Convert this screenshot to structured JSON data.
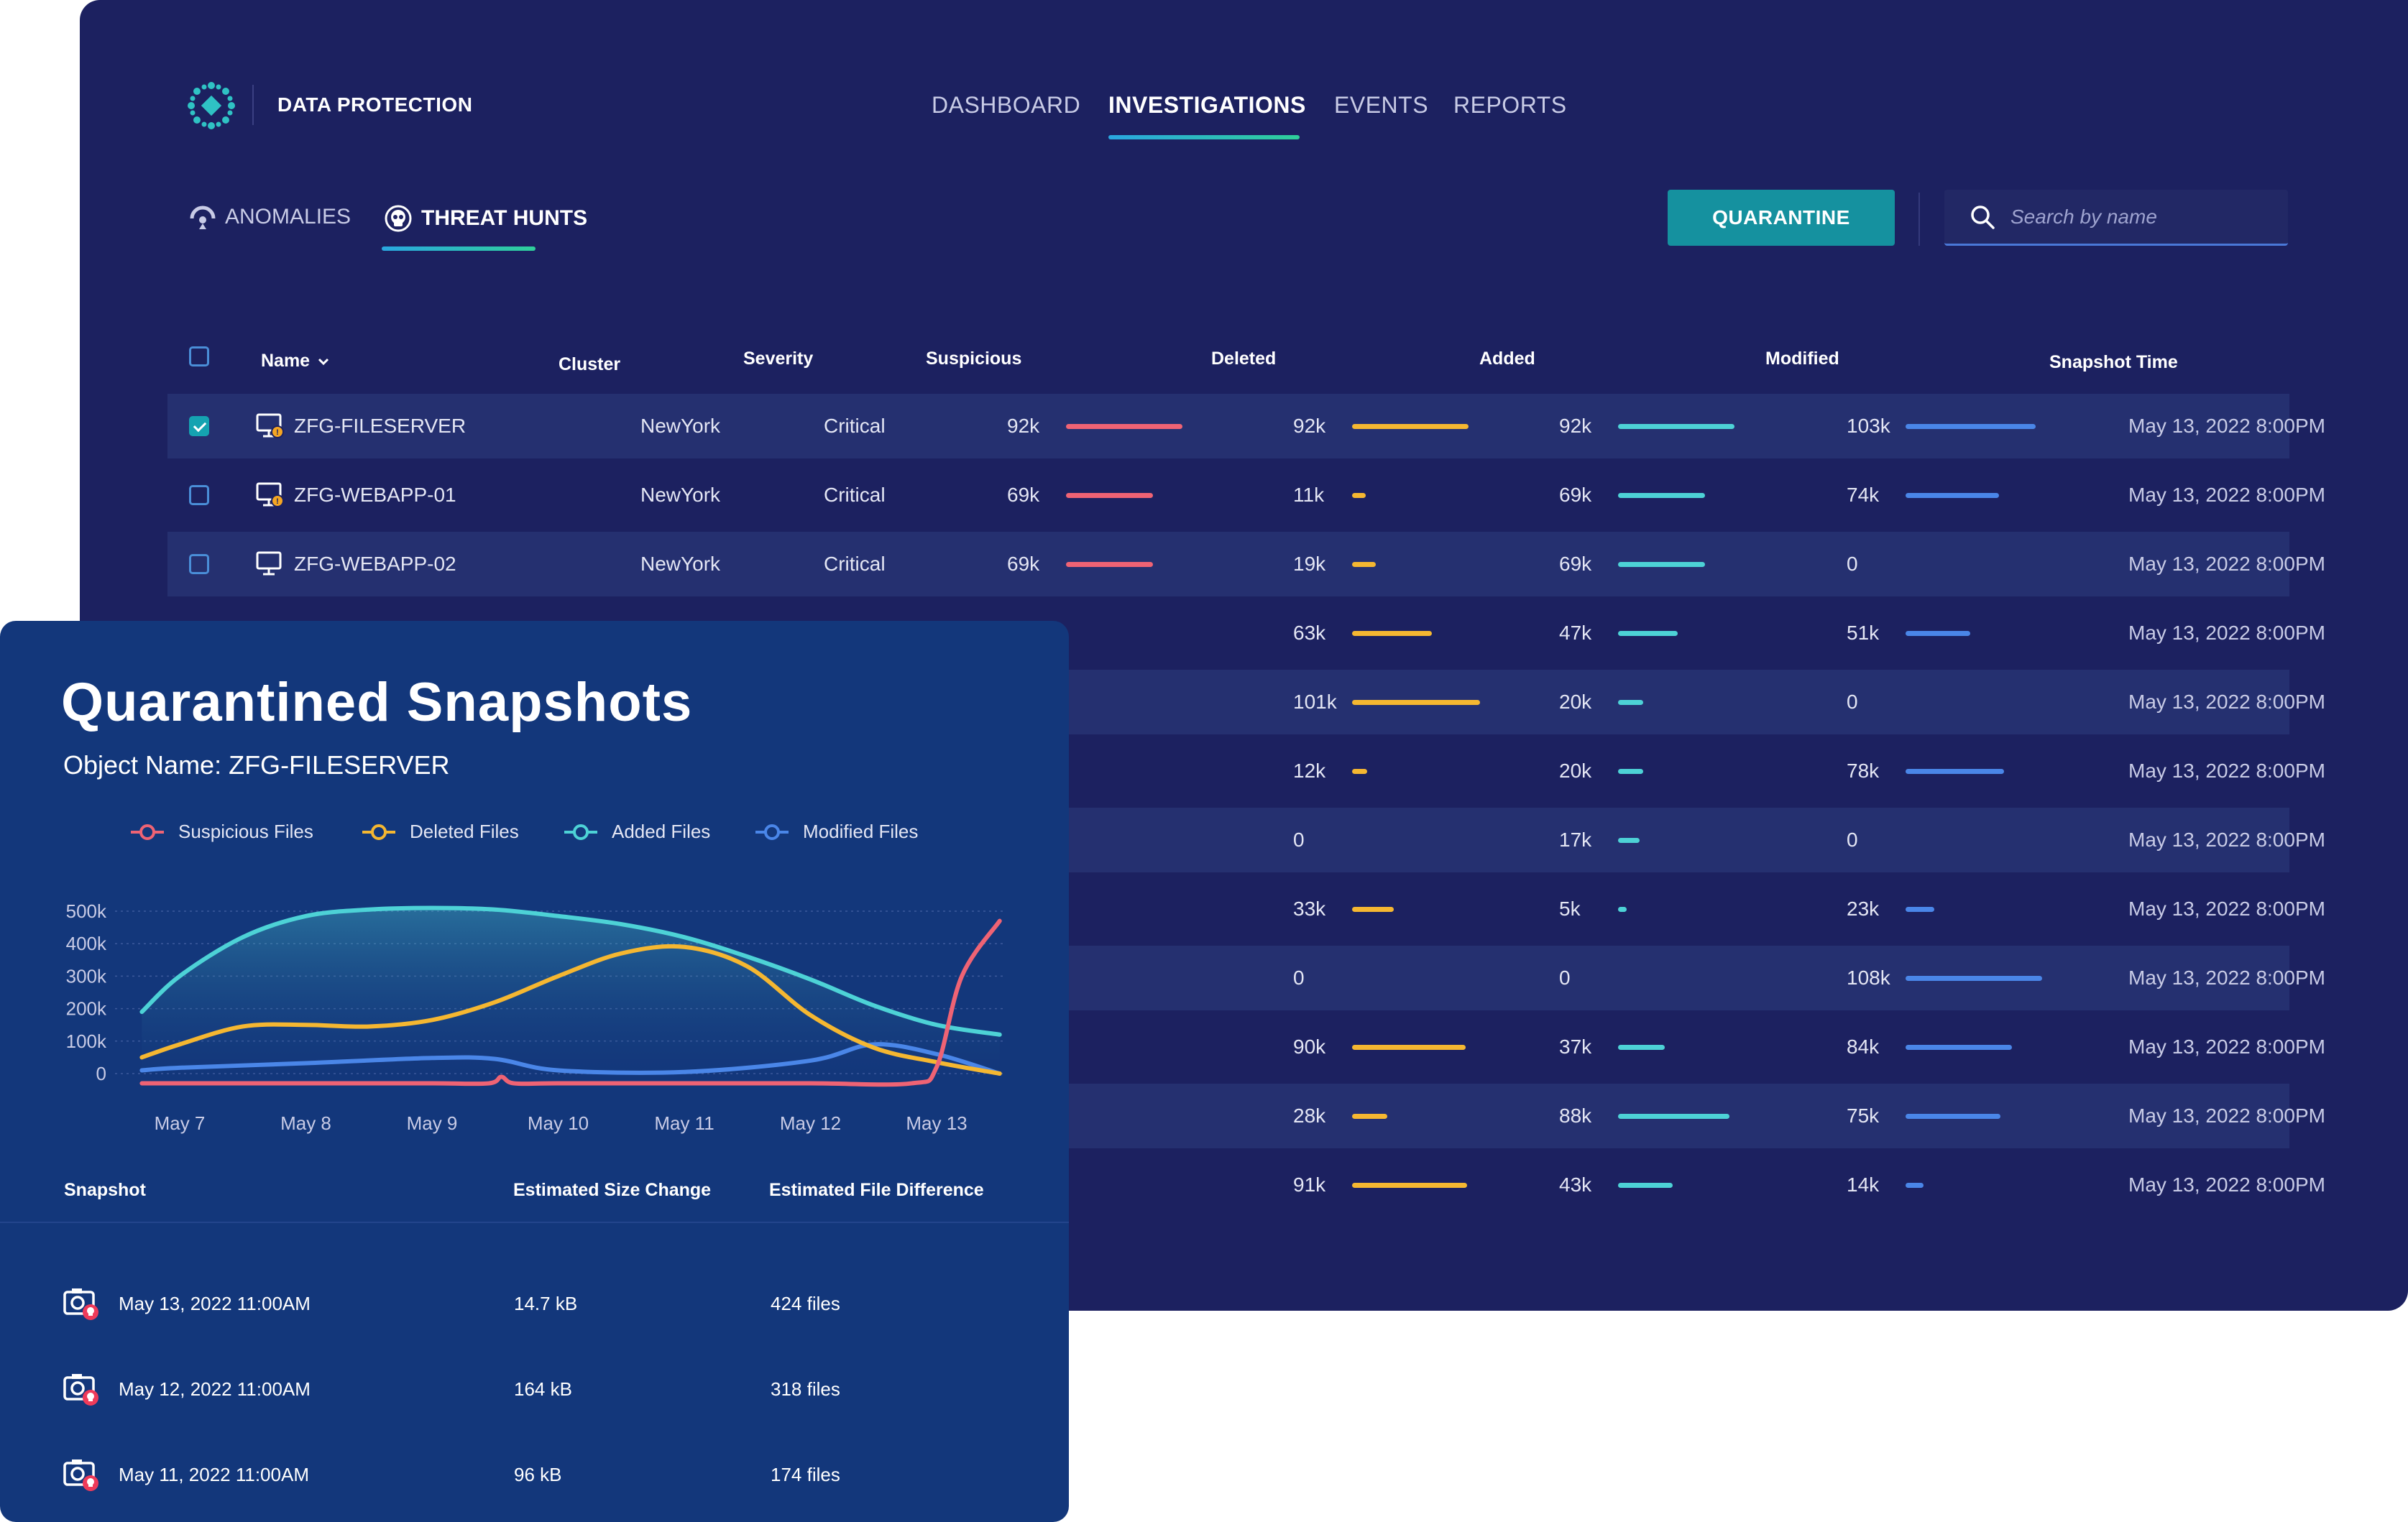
{
  "app": {
    "brand": "DATA PROTECTION"
  },
  "nav": [
    {
      "label": "DASHBOARD",
      "active": false
    },
    {
      "label": "INVESTIGATIONS",
      "active": true
    },
    {
      "label": "EVENTS",
      "active": false
    },
    {
      "label": "REPORTS",
      "active": false
    }
  ],
  "subtabs": [
    {
      "label": "ANOMALIES",
      "icon": "anomaly-icon",
      "active": false
    },
    {
      "label": "THREAT HUNTS",
      "icon": "skull-icon",
      "active": true
    }
  ],
  "toolbar": {
    "quarantine_label": "QUARANTINE",
    "search_placeholder": "Search by name"
  },
  "colors": {
    "suspicious": "#ef6374",
    "deleted": "#f5b731",
    "added": "#4dd2d6",
    "modified": "#4a86e8",
    "accent": "#15919f"
  },
  "table": {
    "headers": {
      "name": "Name",
      "cluster": "Cluster",
      "severity": "Severity",
      "suspicious": "Suspicious",
      "deleted": "Deleted",
      "added": "Added",
      "modified": "Modified",
      "snapshot_time": "Snapshot Time"
    },
    "rows": [
      {
        "checked": true,
        "name": "ZFG-FILESERVER",
        "warn": true,
        "cluster": "NewYork",
        "severity": "Critical",
        "suspicious": "92k",
        "deleted": "92k",
        "added": "92k",
        "modified": "103k",
        "time": "May 13, 2022 8:00PM"
      },
      {
        "checked": false,
        "name": "ZFG-WEBAPP-01",
        "warn": true,
        "cluster": "NewYork",
        "severity": "Critical",
        "suspicious": "69k",
        "deleted": "11k",
        "added": "69k",
        "modified": "74k",
        "time": "May 13, 2022 8:00PM"
      },
      {
        "checked": false,
        "name": "ZFG-WEBAPP-02",
        "warn": false,
        "cluster": "NewYork",
        "severity": "Critical",
        "suspicious": "69k",
        "deleted": "19k",
        "added": "69k",
        "modified": "0",
        "time": "May 13, 2022 8:00PM"
      },
      {
        "deleted": "63k",
        "added": "47k",
        "modified": "51k",
        "time": "May 13, 2022 8:00PM"
      },
      {
        "deleted": "101k",
        "added": "20k",
        "modified": "0",
        "time": "May 13, 2022 8:00PM"
      },
      {
        "deleted": "12k",
        "added": "20k",
        "modified": "78k",
        "time": "May 13, 2022 8:00PM"
      },
      {
        "deleted": "0",
        "added": "17k",
        "modified": "0",
        "time": "May 13, 2022 8:00PM"
      },
      {
        "deleted": "33k",
        "added": "5k",
        "modified": "23k",
        "time": "May 13, 2022 8:00PM"
      },
      {
        "deleted": "0",
        "added": "0",
        "modified": "108k",
        "time": "May 13, 2022 8:00PM"
      },
      {
        "deleted": "90k",
        "added": "37k",
        "modified": "84k",
        "time": "May 13, 2022 8:00PM"
      },
      {
        "deleted": "28k",
        "added": "88k",
        "modified": "75k",
        "time": "May 13, 2022 8:00PM"
      },
      {
        "deleted": "91k",
        "added": "43k",
        "modified": "14k",
        "time": "May 13, 2022 8:00PM"
      }
    ]
  },
  "panel": {
    "title": "Quarantined Snapshots",
    "subtitle": "Object Name: ZFG-FILESERVER",
    "headers": {
      "snapshot": "Snapshot",
      "size": "Estimated Size Change",
      "diff": "Estimated File Difference"
    },
    "snapshots": [
      {
        "date": "May 13, 2022 11:00AM",
        "size": "14.7 kB",
        "diff": "424 files"
      },
      {
        "date": "May 12, 2022 11:00AM",
        "size": "164 kB",
        "diff": "318 files"
      },
      {
        "date": "May 11, 2022 11:00AM",
        "size": "96 kB",
        "diff": "174 files"
      }
    ]
  },
  "chart_data": {
    "type": "line",
    "x": [
      "May 7",
      "May 8",
      "May 9",
      "May 10",
      "May 11",
      "May 12",
      "May 13"
    ],
    "yticks": [
      "500k",
      "400k",
      "300k",
      "200k",
      "100k",
      "0"
    ],
    "ylim": [
      0,
      500000
    ],
    "legend_position": "top",
    "series": [
      {
        "name": "Suspicious Files",
        "color": "#ef6374",
        "points": [
          [
            6.7,
            -30000
          ],
          [
            7,
            -30000
          ],
          [
            8,
            -30000
          ],
          [
            9,
            -30000
          ],
          [
            9.45,
            -30000
          ],
          [
            9.55,
            -10000
          ],
          [
            9.65,
            -30000
          ],
          [
            10,
            -30000
          ],
          [
            11,
            -30000
          ],
          [
            12,
            -30000
          ],
          [
            12.8,
            -30000
          ],
          [
            13,
            20000
          ],
          [
            13.2,
            300000
          ],
          [
            13.5,
            470000
          ]
        ]
      },
      {
        "name": "Deleted Files",
        "color": "#f5b731",
        "points": [
          [
            6.7,
            50000
          ],
          [
            7,
            90000
          ],
          [
            7.5,
            145000
          ],
          [
            8,
            150000
          ],
          [
            8.5,
            145000
          ],
          [
            9,
            165000
          ],
          [
            9.5,
            220000
          ],
          [
            10,
            300000
          ],
          [
            10.5,
            370000
          ],
          [
            11,
            390000
          ],
          [
            11.5,
            330000
          ],
          [
            12,
            180000
          ],
          [
            12.5,
            80000
          ],
          [
            13,
            35000
          ],
          [
            13.5,
            0
          ]
        ]
      },
      {
        "name": "Added Files",
        "color": "#4dd2d6",
        "points": [
          [
            6.7,
            190000
          ],
          [
            7,
            300000
          ],
          [
            7.5,
            420000
          ],
          [
            8,
            485000
          ],
          [
            8.5,
            505000
          ],
          [
            9,
            510000
          ],
          [
            9.5,
            505000
          ],
          [
            10,
            485000
          ],
          [
            10.5,
            460000
          ],
          [
            11,
            420000
          ],
          [
            11.5,
            360000
          ],
          [
            12,
            290000
          ],
          [
            12.5,
            210000
          ],
          [
            13,
            150000
          ],
          [
            13.5,
            120000
          ]
        ]
      },
      {
        "name": "Modified Files",
        "color": "#4a86e8",
        "points": [
          [
            6.7,
            10000
          ],
          [
            7,
            18000
          ],
          [
            8,
            32000
          ],
          [
            9,
            48000
          ],
          [
            9.5,
            45000
          ],
          [
            10,
            10000
          ],
          [
            11,
            5000
          ],
          [
            12,
            40000
          ],
          [
            12.5,
            90000
          ],
          [
            13,
            60000
          ],
          [
            13.5,
            0
          ]
        ]
      }
    ]
  }
}
